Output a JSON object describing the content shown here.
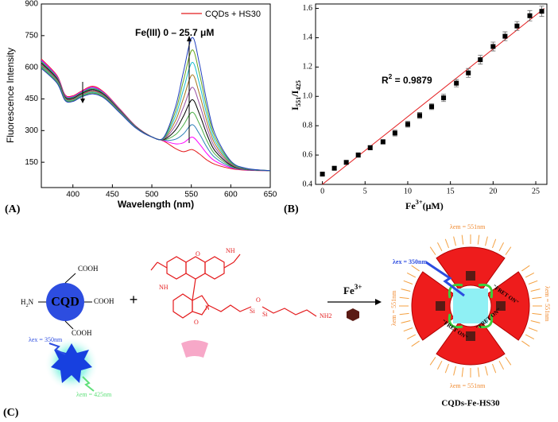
{
  "chart_data": [
    {
      "type": "line",
      "panel": "(A)",
      "xlabel": "Wavelength (nm)",
      "ylabel": "Fluorescence Intensity",
      "annotation": "Fe(III) 0 – 25.7 μM",
      "x": [
        360,
        380,
        390,
        400,
        410,
        425,
        440,
        460,
        480,
        500,
        515,
        530,
        540,
        551,
        560,
        570,
        580,
        600,
        620,
        650
      ],
      "xlim": [
        360,
        650
      ],
      "xticks": [
        400,
        450,
        500,
        550,
        600,
        650
      ],
      "ylim": [
        30,
        900
      ],
      "yticks": [
        150,
        300,
        450,
        600,
        750,
        900
      ],
      "legend": "upper right",
      "series": [
        {
          "name": "CQDs + HS30",
          "color": "#e41a1c",
          "values": [
            640,
            560,
            470,
            465,
            485,
            510,
            480,
            400,
            320,
            270,
            250,
            215,
            200,
            210,
            190,
            160,
            140,
            120,
            112,
            110
          ]
        },
        {
          "color": "#ff00ff",
          "values": [
            635,
            556,
            467,
            462,
            482,
            506,
            477,
            398,
            319,
            270,
            252,
            237,
            242,
            269,
            238,
            190,
            156,
            124,
            113,
            110
          ]
        },
        {
          "color": "#2c7fb8",
          "values": [
            630,
            552,
            464,
            459,
            479,
            502,
            474,
            396,
            318,
            270,
            254,
            259,
            284,
            328,
            286,
            220,
            172,
            128,
            114,
            110
          ]
        },
        {
          "color": "#4daf4a",
          "values": [
            625,
            548,
            461,
            456,
            476,
            498,
            471,
            394,
            317,
            270,
            256,
            281,
            326,
            387,
            334,
            250,
            188,
            132,
            115,
            110
          ]
        },
        {
          "color": "#000000",
          "values": [
            620,
            544,
            458,
            453,
            473,
            494,
            468,
            392,
            316,
            270,
            258,
            303,
            368,
            446,
            382,
            280,
            204,
            136,
            116,
            110
          ]
        },
        {
          "color": "#984ea3",
          "values": [
            615,
            540,
            455,
            450,
            470,
            490,
            465,
            390,
            315,
            270,
            260,
            325,
            410,
            505,
            430,
            310,
            220,
            140,
            117,
            110
          ]
        },
        {
          "color": "#a6761d",
          "values": [
            610,
            536,
            452,
            447,
            467,
            486,
            462,
            388,
            314,
            270,
            262,
            347,
            452,
            564,
            478,
            340,
            236,
            144,
            118,
            110
          ]
        },
        {
          "color": "#17becf",
          "values": [
            605,
            532,
            449,
            444,
            464,
            482,
            459,
            386,
            313,
            270,
            264,
            369,
            494,
            623,
            526,
            370,
            252,
            148,
            119,
            110
          ]
        },
        {
          "color": "#66a61e",
          "values": [
            600,
            528,
            446,
            441,
            461,
            478,
            456,
            384,
            312,
            270,
            266,
            391,
            536,
            682,
            574,
            400,
            268,
            152,
            120,
            110
          ]
        },
        {
          "color": "#1f3fbf",
          "values": [
            595,
            524,
            443,
            438,
            458,
            474,
            453,
            382,
            311,
            270,
            268,
            413,
            578,
            741,
            622,
            430,
            284,
            156,
            121,
            110
          ]
        }
      ]
    },
    {
      "type": "scatter",
      "panel": "(B)",
      "xlabel": [
        "Fe",
        "3+",
        "(μM)"
      ],
      "ylabel": [
        "I",
        "551",
        "/I",
        "425"
      ],
      "annotation": [
        "R",
        "2",
        " = 0.9879"
      ],
      "x": [
        0,
        1.4,
        2.8,
        4.2,
        5.6,
        7.1,
        8.5,
        10,
        11.4,
        12.8,
        14.2,
        15.7,
        17.1,
        18.5,
        20,
        21.4,
        22.8,
        24.3,
        25.7
      ],
      "values": [
        0.47,
        0.51,
        0.55,
        0.6,
        0.65,
        0.69,
        0.75,
        0.81,
        0.87,
        0.93,
        0.99,
        1.09,
        1.16,
        1.25,
        1.34,
        1.41,
        1.48,
        1.55,
        1.58
      ],
      "errors": [
        0.01,
        0.01,
        0.01,
        0.015,
        0.015,
        0.015,
        0.02,
        0.02,
        0.02,
        0.02,
        0.025,
        0.025,
        0.03,
        0.03,
        0.03,
        0.03,
        0.03,
        0.035,
        0.035
      ],
      "color": "#000000",
      "fit": {
        "x": [
          0,
          26
        ],
        "values": [
          0.4,
          1.6
        ],
        "color": "#e41a1c"
      },
      "xlim": [
        -0.8,
        26.3
      ],
      "xticks": [
        0,
        5,
        10,
        15,
        20,
        25
      ],
      "ylim": [
        0.4,
        1.63
      ],
      "yticks": [
        0.4,
        0.6,
        0.8,
        {
          "value": 1,
          "label": "1.0"
        },
        1.2,
        1.4,
        1.6
      ]
    }
  ],
  "diagram": {
    "panel": "(C)",
    "cqd": "CQD",
    "cooh": [
      "COOH",
      "COOH",
      "COOH"
    ],
    "amine": [
      "H",
      "2",
      "N"
    ],
    "plus": "+",
    "reagent": [
      "Fe",
      "3+"
    ],
    "ex_left": "λex = 350nm",
    "em_left": "λem = 425nm",
    "ex_right": "λex = 350nm",
    "em_right": [
      "λem = 551nm",
      "λem = 551nm",
      "λem = 551nm",
      "λem = 551nm"
    ],
    "fret": [
      "\"FRET ON\"",
      "\"FRET ON\"",
      "\"FRET ON\""
    ],
    "product": "CQDs-Fe-HS30",
    "atoms": [
      "NH",
      "NH",
      "N",
      "O",
      "O",
      "Si",
      "Si",
      "O",
      "NH2"
    ]
  }
}
